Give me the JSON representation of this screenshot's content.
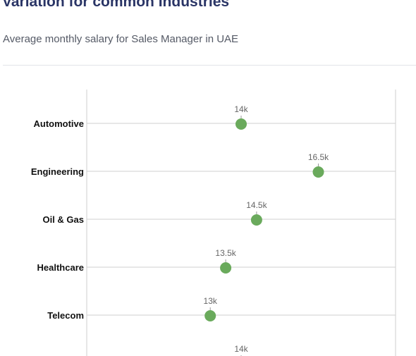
{
  "header": {
    "title": "Variation for common Industries",
    "subtitle": "Average monthly salary for Sales Manager in UAE"
  },
  "colors": {
    "marker": "#6aaa5c",
    "grid": "#cfcfcf",
    "label": "#111111",
    "value_label": "#666666",
    "title": "#2a3566"
  },
  "chart_data": {
    "type": "scatter",
    "orientation": "horizontal",
    "categories": [
      "Automotive",
      "Engineering",
      "Oil & Gas",
      "Healthcare",
      "Telecom",
      ""
    ],
    "values": [
      14,
      16.5,
      14.5,
      13.5,
      13,
      14
    ],
    "value_labels": [
      "14k",
      "16.5k",
      "14.5k",
      "13.5k",
      "13k",
      "14k"
    ],
    "xlim": [
      9,
      19
    ],
    "grid": true,
    "legend": "none"
  }
}
